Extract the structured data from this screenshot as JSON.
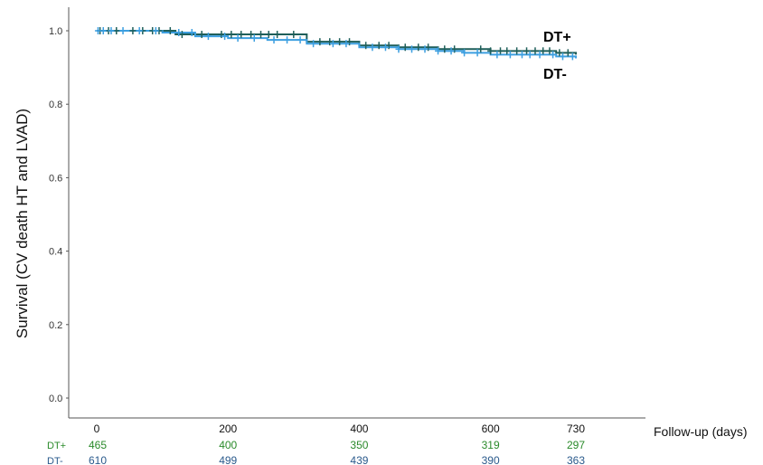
{
  "chart_data": {
    "type": "line",
    "title": "",
    "ylabel": "Survival (CV death HT and LVAD)",
    "xlabel": "Follow-up (days)",
    "ylim": [
      0,
      1.0
    ],
    "xlim": [
      0,
      730
    ],
    "y_ticks": [
      "0.0",
      "0.2",
      "0.4",
      "0.6",
      "0.8",
      "1.0"
    ],
    "x_ticks": [
      "0",
      "200",
      "400",
      "600",
      "730"
    ],
    "grid": false,
    "curve_labels": [
      {
        "text": "DT+",
        "series": "DT+"
      },
      {
        "text": "DT-",
        "series": "DT-"
      }
    ],
    "series": [
      {
        "name": "DT+",
        "color": "#1f5f5a",
        "x": [
          0,
          40,
          100,
          120,
          180,
          260,
          320,
          400,
          460,
          520,
          560,
          600,
          650,
          700,
          730
        ],
        "y": [
          1.0,
          1.0,
          1.0,
          0.99,
          0.99,
          0.99,
          0.97,
          0.96,
          0.955,
          0.95,
          0.95,
          0.945,
          0.945,
          0.94,
          0.935
        ]
      },
      {
        "name": "DT-",
        "color": "#3d9fe0",
        "x": [
          0,
          40,
          100,
          150,
          200,
          260,
          320,
          400,
          460,
          520,
          560,
          600,
          650,
          700,
          730
        ],
        "y": [
          1.0,
          1.0,
          0.995,
          0.985,
          0.98,
          0.975,
          0.965,
          0.955,
          0.95,
          0.945,
          0.94,
          0.935,
          0.935,
          0.93,
          0.925
        ]
      }
    ],
    "censor_marks": {
      "DT+": [
        5,
        18,
        30,
        55,
        70,
        85,
        95,
        112,
        130,
        160,
        190,
        205,
        220,
        235,
        250,
        262,
        275,
        300,
        340,
        355,
        370,
        385,
        410,
        430,
        445,
        470,
        490,
        505,
        530,
        545,
        585,
        600,
        615,
        625,
        640,
        655,
        668,
        680,
        690,
        705,
        718
      ],
      "DT-": [
        2,
        10,
        22,
        40,
        65,
        90,
        125,
        145,
        170,
        195,
        215,
        240,
        270,
        290,
        310,
        330,
        360,
        380,
        420,
        440,
        460,
        480,
        500,
        520,
        540,
        560,
        580,
        610,
        630,
        648,
        660,
        675,
        695,
        710,
        725
      ]
    },
    "number_at_risk": {
      "timepoints": [
        "0",
        "200",
        "400",
        "600",
        "730"
      ],
      "rows": [
        {
          "group": "DT+",
          "color": "#2a8a2a",
          "values": [
            "465",
            "400",
            "350",
            "319",
            "297"
          ]
        },
        {
          "group": "DT-",
          "color": "#2a5a8c",
          "values": [
            "610",
            "499",
            "439",
            "390",
            "363"
          ]
        }
      ]
    }
  }
}
